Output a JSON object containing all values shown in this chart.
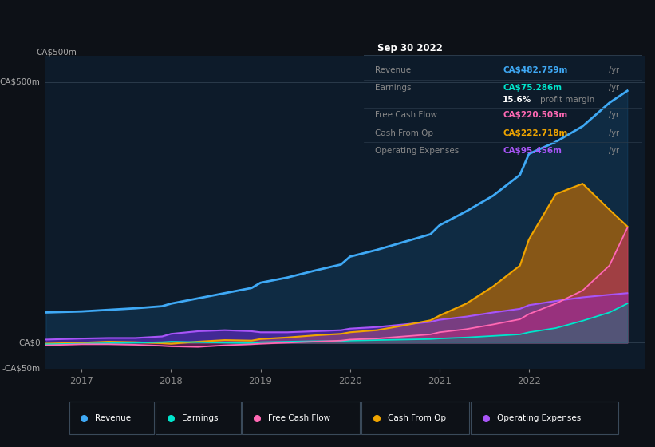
{
  "bg_color": "#0d1117",
  "chart_bg": "#0d1b2a",
  "title_box_text": "Sep 30 2022",
  "ylim": [
    -50,
    550
  ],
  "yticks": [
    -50,
    0,
    500
  ],
  "ytick_labels": [
    "-CA$50m",
    "CA$0",
    "CA$500m"
  ],
  "xlim_start": 2016.6,
  "xlim_end": 2023.3,
  "xticks": [
    2017,
    2018,
    2019,
    2020,
    2021,
    2022
  ],
  "legend_items": [
    {
      "label": "Revenue",
      "color": "#3fa9f5"
    },
    {
      "label": "Earnings",
      "color": "#00e5cc"
    },
    {
      "label": "Free Cash Flow",
      "color": "#ff69b4"
    },
    {
      "label": "Cash From Op",
      "color": "#f0a500"
    },
    {
      "label": "Operating Expenses",
      "color": "#a855f7"
    }
  ],
  "revenue": {
    "x": [
      2016.6,
      2017.0,
      2017.3,
      2017.6,
      2017.9,
      2018.0,
      2018.3,
      2018.6,
      2018.9,
      2019.0,
      2019.3,
      2019.6,
      2019.9,
      2020.0,
      2020.3,
      2020.6,
      2020.9,
      2021.0,
      2021.3,
      2021.6,
      2021.9,
      2022.0,
      2022.3,
      2022.6,
      2022.9,
      2023.1
    ],
    "y": [
      58,
      60,
      63,
      66,
      70,
      75,
      85,
      95,
      105,
      115,
      125,
      138,
      150,
      165,
      178,
      193,
      208,
      225,
      252,
      282,
      322,
      362,
      385,
      415,
      460,
      483
    ]
  },
  "earnings": {
    "x": [
      2016.6,
      2017.0,
      2017.3,
      2017.6,
      2017.9,
      2018.0,
      2018.3,
      2018.6,
      2018.9,
      2019.0,
      2019.3,
      2019.6,
      2019.9,
      2020.0,
      2020.3,
      2020.6,
      2020.9,
      2021.0,
      2021.3,
      2021.6,
      2021.9,
      2022.0,
      2022.3,
      2022.6,
      2022.9,
      2023.1
    ],
    "y": [
      -3,
      -2,
      -1,
      0,
      1,
      2,
      1,
      0,
      -1,
      1,
      2,
      3,
      3,
      4,
      5,
      6,
      7,
      8,
      10,
      13,
      16,
      20,
      28,
      42,
      58,
      75
    ]
  },
  "free_cash_flow": {
    "x": [
      2016.6,
      2017.0,
      2017.3,
      2017.6,
      2017.9,
      2018.0,
      2018.3,
      2018.6,
      2018.9,
      2019.0,
      2019.3,
      2019.6,
      2019.9,
      2020.0,
      2020.3,
      2020.6,
      2020.9,
      2021.0,
      2021.3,
      2021.6,
      2021.9,
      2022.0,
      2022.3,
      2022.6,
      2022.9,
      2023.1
    ],
    "y": [
      -5,
      -3,
      -3,
      -4,
      -6,
      -7,
      -8,
      -5,
      -3,
      -2,
      0,
      2,
      4,
      6,
      8,
      12,
      16,
      20,
      26,
      35,
      45,
      55,
      75,
      100,
      148,
      220
    ]
  },
  "cash_from_op": {
    "x": [
      2016.6,
      2017.0,
      2017.3,
      2017.6,
      2017.9,
      2018.0,
      2018.3,
      2018.6,
      2018.9,
      2019.0,
      2019.3,
      2019.6,
      2019.9,
      2020.0,
      2020.3,
      2020.6,
      2020.9,
      2021.0,
      2021.3,
      2021.6,
      2021.9,
      2022.0,
      2022.3,
      2022.6,
      2022.9,
      2023.1
    ],
    "y": [
      -2,
      0,
      2,
      1,
      -1,
      -2,
      2,
      5,
      4,
      7,
      10,
      14,
      17,
      20,
      24,
      33,
      43,
      52,
      75,
      108,
      148,
      198,
      285,
      305,
      255,
      223
    ]
  },
  "operating_expenses": {
    "x": [
      2016.6,
      2017.0,
      2017.3,
      2017.6,
      2017.9,
      2018.0,
      2018.3,
      2018.6,
      2018.9,
      2019.0,
      2019.3,
      2019.6,
      2019.9,
      2020.0,
      2020.3,
      2020.6,
      2020.9,
      2021.0,
      2021.3,
      2021.6,
      2021.9,
      2022.0,
      2022.3,
      2022.6,
      2022.9,
      2023.1
    ],
    "y": [
      6,
      8,
      9,
      9,
      12,
      17,
      22,
      24,
      22,
      20,
      20,
      22,
      24,
      27,
      30,
      35,
      40,
      44,
      50,
      58,
      65,
      72,
      80,
      87,
      92,
      95
    ]
  },
  "table_rows": [
    {
      "label": "Revenue",
      "value": "CA$482.759m",
      "color": "#3fa9f5"
    },
    {
      "label": "Earnings",
      "value": "CA$75.286m",
      "color": "#00e5cc"
    },
    {
      "label": "",
      "value": "15.6% profit margin",
      "bold_end": "profit margin",
      "color": "#ffffff"
    },
    {
      "label": "Free Cash Flow",
      "value": "CA$220.503m",
      "color": "#ff69b4"
    },
    {
      "label": "Cash From Op",
      "value": "CA$222.718m",
      "color": "#f0a500"
    },
    {
      "label": "Operating Expenses",
      "value": "CA$95.456m",
      "color": "#a855f7"
    }
  ]
}
